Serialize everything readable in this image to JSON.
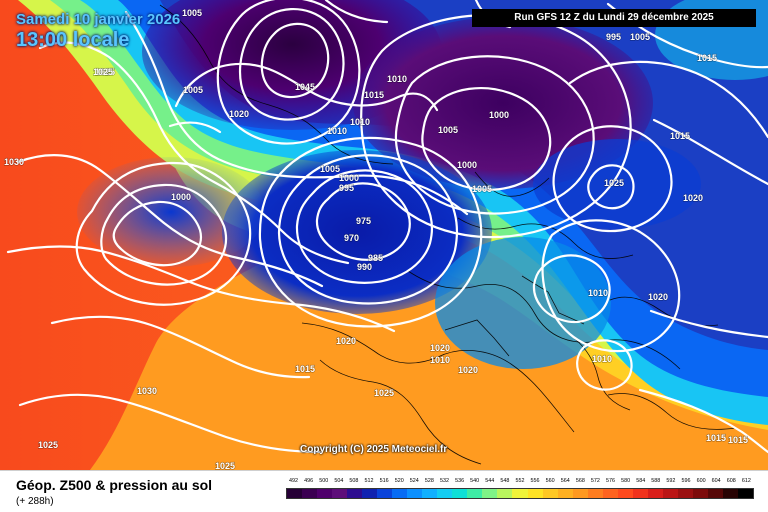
{
  "header": {
    "date": "Samedi 10 janvier 2026",
    "time": "13:00 locale",
    "run": "Run GFS 12 Z du Lundi 29 décembre 2025"
  },
  "map": {
    "copyright": "Copyright (C) 2025 Meteociel.fr",
    "isobar_labels": [
      "1005",
      "1025",
      "1030",
      "1020",
      "1005",
      "1045",
      "1015",
      "1010",
      "1005",
      "1000",
      "995",
      "990",
      "975",
      "970",
      "985",
      "1025",
      "1010",
      "1005",
      "1000",
      "995",
      "1000",
      "1005",
      "1015",
      "1020",
      "1025",
      "1000",
      "1005",
      "1010",
      "1015",
      "1020",
      "1030",
      "1015",
      "1010",
      "1010",
      "1020",
      "1020",
      "1010",
      "1015",
      "1025",
      "1025",
      "1025",
      "1015",
      "1020"
    ]
  },
  "footer": {
    "title": "Géop. Z500 & pression au sol",
    "subtitle": "(+ 288h)"
  },
  "legend": {
    "labels": [
      "492",
      "496",
      "500",
      "504",
      "508",
      "512",
      "516",
      "520",
      "524",
      "528",
      "532",
      "536",
      "540",
      "544",
      "548",
      "552",
      "556",
      "560",
      "564",
      "568",
      "572",
      "576",
      "580",
      "584",
      "588",
      "592",
      "596",
      "600",
      "604",
      "608",
      "612"
    ],
    "colors": [
      "#260036",
      "#3b0052",
      "#4f006c",
      "#5e0d7a",
      "#2d0c90",
      "#1022b0",
      "#0a43da",
      "#086cf4",
      "#0c90ff",
      "#11b0ff",
      "#14cdf3",
      "#0de0d7",
      "#3deca5",
      "#7ff387",
      "#b9f55e",
      "#f0f43a",
      "#ffe325",
      "#ffc824",
      "#ffb021",
      "#ff9920",
      "#ff7d1f",
      "#ff631f",
      "#ff4a1d",
      "#f1321c",
      "#d91e1a",
      "#bb1515",
      "#9b1011",
      "#7d0b0b",
      "#560707",
      "#270303",
      "#000000"
    ]
  }
}
